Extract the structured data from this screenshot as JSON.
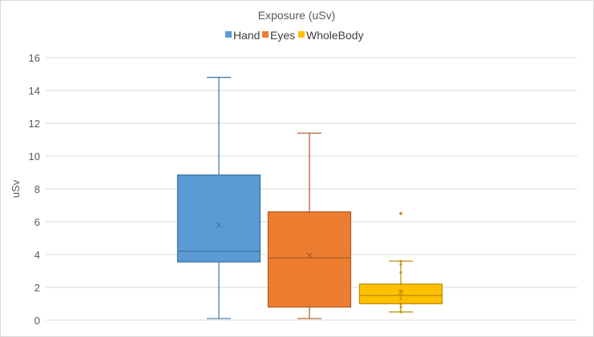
{
  "chart_data": {
    "type": "box",
    "title": "Exposure (uSv)",
    "ylabel": "uSv",
    "xlabel": "",
    "ylim": [
      0,
      16
    ],
    "yticks": [
      0,
      2,
      4,
      6,
      8,
      10,
      12,
      14,
      16
    ],
    "grid": true,
    "legend_position": "top",
    "series": [
      {
        "name": "Hand",
        "color": "#5b9bd5",
        "stroke": "#41719c",
        "min": 0.1,
        "q1": 3.55,
        "median": 4.2,
        "mean": 5.8,
        "q3": 8.85,
        "max": 14.8,
        "outliers": []
      },
      {
        "name": "Eyes",
        "color": "#ed7d31",
        "stroke": "#ae5a21",
        "min": 0.1,
        "q1": 0.8,
        "median": 3.8,
        "mean": 3.95,
        "q3": 6.6,
        "max": 11.4,
        "outliers": []
      },
      {
        "name": "WholeBody",
        "color": "#ffc000",
        "stroke": "#bc8c00",
        "min": 0.5,
        "q1": 1.0,
        "median": 1.5,
        "mean": 1.7,
        "q3": 2.2,
        "max": 3.6,
        "outliers": [
          6.5
        ],
        "points": [
          0.5,
          0.8,
          1.0,
          1.3,
          1.5,
          1.8,
          2.2,
          2.9,
          3.4,
          3.6
        ]
      }
    ]
  }
}
